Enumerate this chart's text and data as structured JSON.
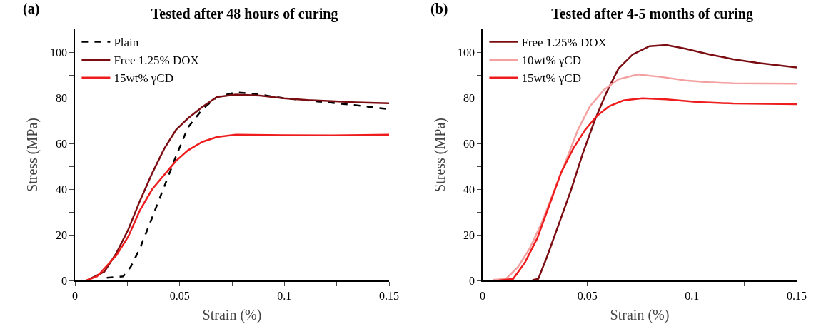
{
  "chart_data": [
    {
      "type": "line",
      "title": "Tested after 48 hours of curing",
      "annotations": [
        "(a)"
      ],
      "xlabel": "Strain (%)",
      "ylabel": "Stress (MPa)",
      "xlim": [
        0,
        0.15
      ],
      "ylim": [
        0,
        110
      ],
      "xticks": [
        0,
        {
          "value": 0.025,
          "label": null
        },
        0.05,
        {
          "value": 0.075,
          "label": null
        },
        0.1,
        {
          "value": 0.125,
          "label": null
        },
        0.15
      ],
      "yticks": [
        0,
        {
          "value": 10,
          "label": null
        },
        20,
        {
          "value": 30,
          "label": null
        },
        40,
        {
          "value": 50,
          "label": null
        },
        60,
        {
          "value": 70,
          "label": null
        },
        80,
        {
          "value": 90,
          "label": null
        },
        100
      ],
      "grid": false,
      "legend": "top left",
      "marker": "none",
      "series": [
        {
          "name": "Plain",
          "color": "#000000",
          "line_style": "dashed",
          "x": [
            0.0152,
            0.023,
            0.0266,
            0.031,
            0.0369,
            0.0426,
            0.0483,
            0.054,
            0.0609,
            0.0678,
            0.0769,
            0.0883,
            0.0997,
            0.111,
            0.1226,
            0.134,
            0.15
          ],
          "values": [
            1.2,
            1.8,
            5.9,
            14,
            27.6,
            41,
            54.5,
            67,
            75,
            80.3,
            82.4,
            81.4,
            79.8,
            78.8,
            77.8,
            76.7,
            75
          ]
        },
        {
          "name": "Free 1.25% DOX",
          "color": "#7b0d12",
          "line_style": "solid",
          "x": [
            0.0055,
            0.014,
            0.0198,
            0.0255,
            0.031,
            0.0369,
            0.0426,
            0.0483,
            0.054,
            0.0609,
            0.0678,
            0.0769,
            0.0883,
            0.0997,
            0.111,
            0.1226,
            0.134,
            0.15
          ],
          "values": [
            0,
            3.8,
            12,
            22.4,
            34.8,
            47,
            57.6,
            66,
            71,
            76,
            80.3,
            81.4,
            80.9,
            79.8,
            79,
            78.5,
            78,
            77.6
          ]
        },
        {
          "name": "15wt% γCD",
          "color": "#ee1c1c",
          "line_style": "solid",
          "x": [
            0.0055,
            0.0106,
            0.0198,
            0.0255,
            0.031,
            0.0369,
            0.0426,
            0.0483,
            0.054,
            0.0609,
            0.0678,
            0.0769,
            0.0997,
            0.1226,
            0.15
          ],
          "values": [
            0,
            1.8,
            11,
            19.3,
            30.7,
            40,
            46.2,
            52.4,
            57,
            60.7,
            62.8,
            63.8,
            63.6,
            63.5,
            63.8
          ]
        }
      ]
    },
    {
      "type": "line",
      "title": "Tested after 4-5 months of curing",
      "annotations": [
        "(b)"
      ],
      "xlabel": "Strain (%)",
      "ylabel": "Stress (MPa)",
      "xlim": [
        0,
        0.15
      ],
      "ylim": [
        0,
        110
      ],
      "xticks": [
        0,
        {
          "value": 0.025,
          "label": null
        },
        0.05,
        {
          "value": 0.075,
          "label": null
        },
        0.1,
        {
          "value": 0.125,
          "label": null
        },
        0.15
      ],
      "yticks": [
        0,
        {
          "value": 10,
          "label": null
        },
        20,
        {
          "value": 30,
          "label": null
        },
        40,
        {
          "value": 50,
          "label": null
        },
        60,
        {
          "value": 70,
          "label": null
        },
        80,
        {
          "value": 90,
          "label": null
        },
        100
      ],
      "grid": false,
      "legend": "top left",
      "marker": "none",
      "series": [
        {
          "name": "Free 1.25% DOX",
          "color": "#7b0d12",
          "line_style": "solid",
          "x": [
            0.0238,
            0.0266,
            0.0306,
            0.0363,
            0.042,
            0.0478,
            0.0535,
            0.0592,
            0.0649,
            0.0717,
            0.0797,
            0.0877,
            0.0969,
            0.1083,
            0.1197,
            0.1312,
            0.15
          ],
          "values": [
            0.2,
            0.7,
            10,
            24.5,
            39,
            55.5,
            70,
            82.4,
            92.8,
            99,
            102.6,
            103.1,
            101.5,
            99,
            96.9,
            95.3,
            93.3
          ]
        },
        {
          "name": "10wt% γCD",
          "color": "#f4a0a0",
          "line_style": "solid",
          "x": [
            0.0049,
            0.0112,
            0.0169,
            0.0226,
            0.0283,
            0.034,
            0.0398,
            0.0455,
            0.0512,
            0.058,
            0.0649,
            0.074,
            0.0855,
            0.0969,
            0.1083,
            0.1197,
            0.15
          ],
          "values": [
            0.2,
            0.7,
            5.9,
            14.2,
            25.5,
            39,
            52.4,
            65.9,
            76.2,
            83.5,
            88.1,
            90.2,
            89.1,
            87.6,
            86.8,
            86.3,
            86.2
          ]
        },
        {
          "name": "15wt% γCD",
          "color": "#ee1c1c",
          "line_style": "solid",
          "x": [
            0.0078,
            0.0146,
            0.0203,
            0.026,
            0.0318,
            0.0375,
            0.0432,
            0.0489,
            0.0546,
            0.0603,
            0.0672,
            0.0763,
            0.0877,
            0.1026,
            0.1197,
            0.15
          ],
          "values": [
            0,
            0.7,
            8,
            18.3,
            32.8,
            47.3,
            57.6,
            65.9,
            72.1,
            76.2,
            78.8,
            79.8,
            79.3,
            78.1,
            77.5,
            77.2
          ]
        }
      ]
    }
  ]
}
